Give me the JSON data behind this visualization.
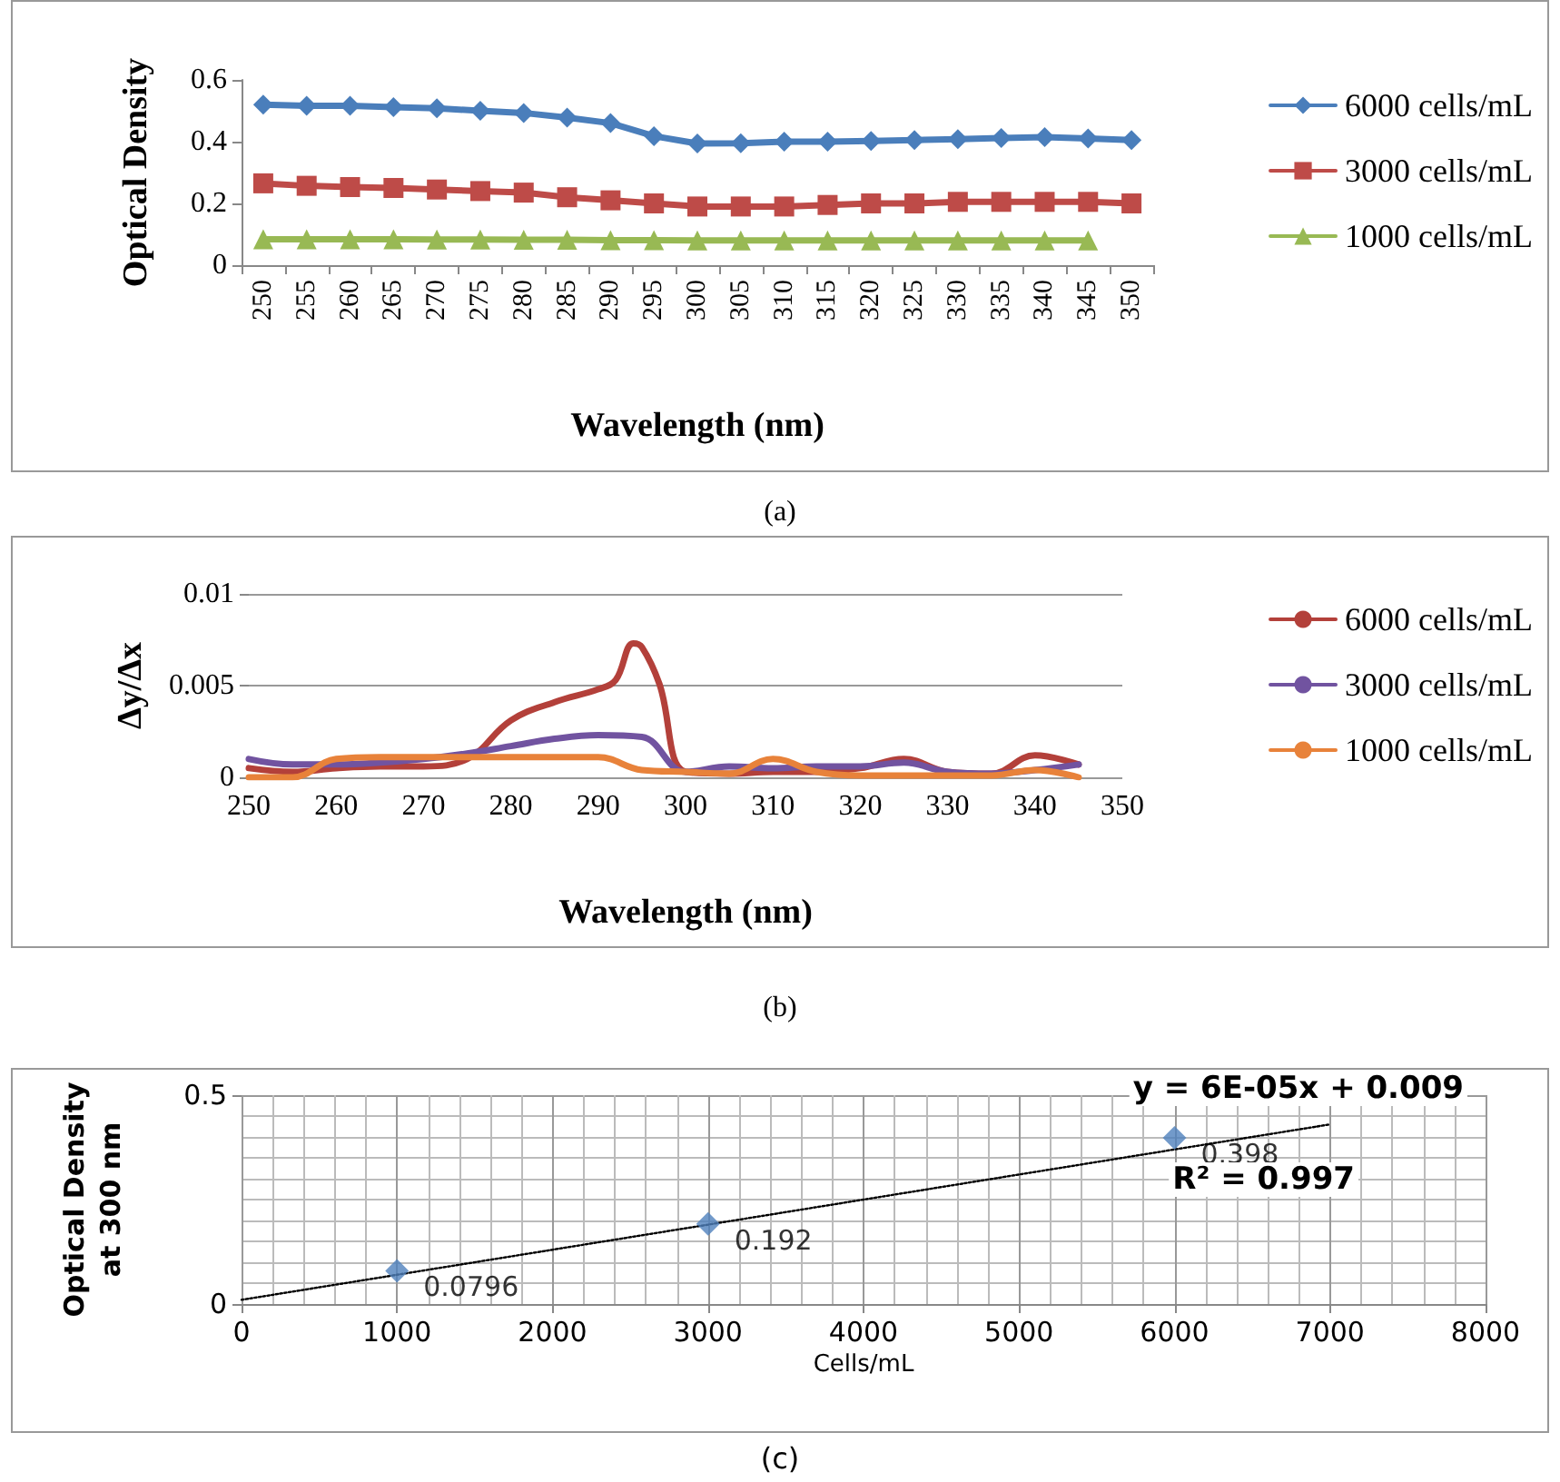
{
  "chart_data": [
    {
      "type": "line",
      "ylabel": "Optical Density",
      "xlabel": "Wavelength (nm)",
      "annotations": [
        "(a)"
      ],
      "categories": [
        "250",
        "255",
        "260",
        "265",
        "270",
        "275",
        "280",
        "285",
        "290",
        "295",
        "300",
        "305",
        "310",
        "315",
        "320",
        "325",
        "330",
        "335",
        "340",
        "345",
        "350"
      ],
      "series": [
        {
          "name": "6000 cells/mL",
          "color": "#4a7ebb",
          "marker": "diamond",
          "values": [
            0.52,
            0.516,
            0.516,
            0.512,
            0.508,
            0.5,
            0.493,
            0.478,
            0.46,
            0.418,
            0.394,
            0.395,
            0.4,
            0.4,
            0.402,
            0.405,
            0.408,
            0.412,
            0.415,
            0.41,
            0.405
          ]
        },
        {
          "name": "3000 cells/mL",
          "color": "#be4b48",
          "marker": "square",
          "values": [
            0.265,
            0.257,
            0.253,
            0.25,
            0.245,
            0.24,
            0.235,
            0.22,
            0.21,
            0.2,
            0.19,
            0.19,
            0.19,
            0.195,
            0.2,
            0.2,
            0.205,
            0.205,
            0.205,
            0.205,
            0.2
          ]
        },
        {
          "name": "1000 cells/mL",
          "color": "#98b954",
          "marker": "triangle",
          "values": [
            0.084,
            0.084,
            0.084,
            0.084,
            0.083,
            0.083,
            0.082,
            0.082,
            0.081,
            0.081,
            0.08,
            0.08,
            0.08,
            0.08,
            0.08,
            0.08,
            0.08,
            0.08,
            0.08,
            0.08,
            null
          ]
        }
      ],
      "ylim": [
        0,
        0.6
      ],
      "yticks": [
        0,
        0.2,
        0.4,
        0.6
      ],
      "grid": false,
      "legend": "right"
    },
    {
      "type": "line",
      "ylabel": "Δy/Δx",
      "xlabel": "Wavelength (nm)",
      "annotations": [
        "(b)"
      ],
      "series": [
        {
          "name": "6000 cells/mL",
          "color": "#b3403a",
          "x": [
            250,
            255,
            260,
            265,
            270,
            275,
            280,
            285,
            290,
            292,
            294,
            295,
            297,
            300,
            305,
            310,
            315,
            320,
            325,
            330,
            335,
            340,
            345
          ],
          "values": [
            0.0005,
            0.0003,
            0.0005,
            0.0006,
            0.0006,
            0.001,
            0.0031,
            0.0041,
            0.0048,
            0.0053,
            0.0073,
            0.0071,
            0.0051,
            0.0003,
            0.0002,
            0.0003,
            0.0003,
            0.0005,
            0.001,
            0.0003,
            0.0002,
            0.0012,
            0.0007
          ]
        },
        {
          "name": "3000 cells/mL",
          "color": "#7153a0",
          "x": [
            250,
            255,
            260,
            265,
            270,
            275,
            280,
            285,
            290,
            295,
            300,
            305,
            310,
            315,
            320,
            325,
            330,
            335,
            340,
            345
          ],
          "values": [
            0.001,
            0.0007,
            0.0007,
            0.0008,
            0.001,
            0.0013,
            0.0017,
            0.0021,
            0.0023,
            0.0022,
            0.0003,
            0.0006,
            0.0005,
            0.0006,
            0.0006,
            0.0008,
            0.0003,
            0.0002,
            0.0004,
            0.0007
          ]
        },
        {
          "name": "1000 cells/mL",
          "color": "#e8823a",
          "x": [
            250,
            255,
            260,
            265,
            270,
            275,
            280,
            285,
            290,
            295,
            300,
            305,
            310,
            315,
            320,
            325,
            330,
            335,
            340,
            345
          ],
          "values": [
            0,
            0,
            0.001,
            0.0011,
            0.0011,
            0.0011,
            0.0011,
            0.0011,
            0.0011,
            0.0004,
            0.0003,
            0.0002,
            0.001,
            0.0003,
            0.0001,
            0.0001,
            0.0001,
            0.0001,
            0.0004,
            0
          ]
        }
      ],
      "xlim": [
        250,
        350
      ],
      "xticks": [
        250,
        260,
        270,
        280,
        290,
        300,
        310,
        320,
        330,
        340,
        350
      ],
      "ylim": [
        0,
        0.01
      ],
      "yticks": [
        0,
        0.005,
        0.01
      ],
      "grid": "y",
      "legend": "right",
      "marker": "none"
    },
    {
      "type": "scatter",
      "ylabel": "Optical Density\nat 300 nm",
      "xlabel": "Cells/mL",
      "annotations": [
        "(c)",
        "y = 6E-05x + 0.009",
        "R² = 0.997"
      ],
      "series": [
        {
          "color": "#4f81bd",
          "marker": "diamond",
          "x": [
            1000,
            3000,
            6000
          ],
          "values": [
            0.0796,
            0.192,
            0.398
          ],
          "value_labels": [
            "0.0796",
            "0.192",
            "0.398"
          ]
        },
        {
          "type": "line",
          "color": "#000000",
          "marker": "none",
          "line_style": "dotted",
          "x": [
            0,
            7000
          ],
          "values": [
            0.01,
            0.43
          ]
        }
      ],
      "xlim": [
        0,
        8000
      ],
      "xticks": [
        0,
        1000,
        2000,
        3000,
        4000,
        5000,
        6000,
        7000,
        8000
      ],
      "ylim": [
        0,
        0.5
      ],
      "yticks": [
        0,
        0.5
      ],
      "grid": true,
      "legend": false
    }
  ]
}
